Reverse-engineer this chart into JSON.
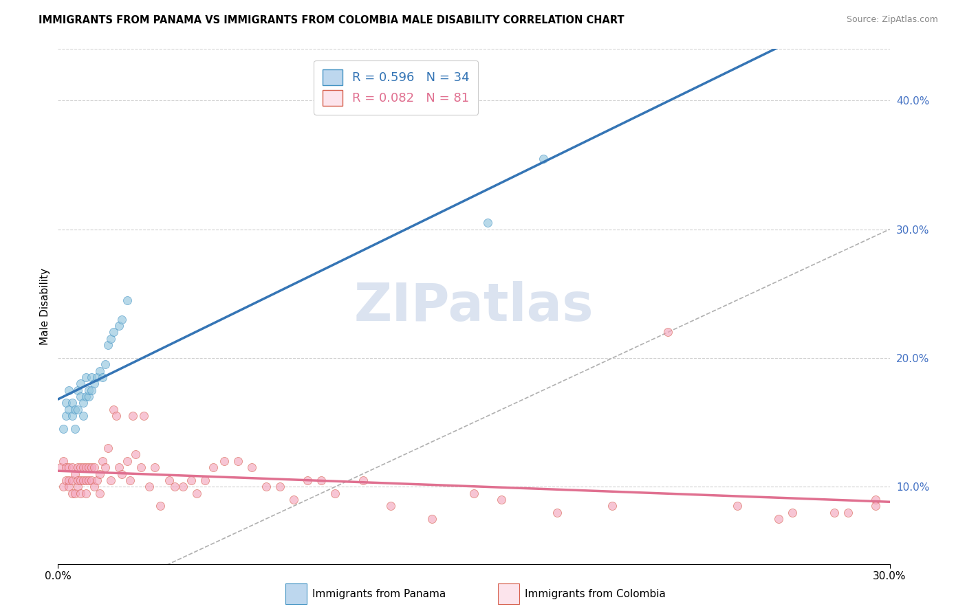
{
  "title": "IMMIGRANTS FROM PANAMA VS IMMIGRANTS FROM COLOMBIA MALE DISABILITY CORRELATION CHART",
  "source": "Source: ZipAtlas.com",
  "ylabel": "Male Disability",
  "xmin": 0.0,
  "xmax": 0.3,
  "ymin": 0.04,
  "ymax": 0.44,
  "ytick_vals": [
    0.1,
    0.2,
    0.3,
    0.4
  ],
  "ytick_labels": [
    "10.0%",
    "20.0%",
    "30.0%",
    "40.0%"
  ],
  "xtick_vals": [
    0.0,
    0.3
  ],
  "xtick_labels": [
    "0.0%",
    "30.0%"
  ],
  "R_panama": 0.596,
  "N_panama": 34,
  "R_colombia": 0.082,
  "N_colombia": 81,
  "color_panama_dot": "#92c5de",
  "color_colombia_dot": "#f4a6be",
  "color_panama_edge": "#4393c3",
  "color_colombia_edge": "#d6604d",
  "color_panama_line": "#3575b5",
  "color_colombia_line": "#e07090",
  "color_panama_legend_fill": "#bdd7ee",
  "color_colombia_legend_fill": "#fce4ec",
  "color_diagonal_dash": "#b0b0b0",
  "color_grid": "#d0d0d0",
  "color_ytick": "#4472c4",
  "watermark_color": "#cdd8ea",
  "panama_x": [
    0.002,
    0.003,
    0.003,
    0.004,
    0.004,
    0.005,
    0.005,
    0.006,
    0.006,
    0.007,
    0.007,
    0.008,
    0.008,
    0.009,
    0.009,
    0.01,
    0.01,
    0.011,
    0.011,
    0.012,
    0.012,
    0.013,
    0.014,
    0.015,
    0.016,
    0.017,
    0.018,
    0.019,
    0.02,
    0.022,
    0.023,
    0.025,
    0.155,
    0.175
  ],
  "panama_y": [
    0.145,
    0.155,
    0.165,
    0.16,
    0.175,
    0.155,
    0.165,
    0.145,
    0.16,
    0.16,
    0.175,
    0.17,
    0.18,
    0.155,
    0.165,
    0.17,
    0.185,
    0.17,
    0.175,
    0.175,
    0.185,
    0.18,
    0.185,
    0.19,
    0.185,
    0.195,
    0.21,
    0.215,
    0.22,
    0.225,
    0.23,
    0.245,
    0.305,
    0.355
  ],
  "colombia_x": [
    0.001,
    0.002,
    0.002,
    0.003,
    0.003,
    0.004,
    0.004,
    0.004,
    0.005,
    0.005,
    0.005,
    0.006,
    0.006,
    0.007,
    0.007,
    0.007,
    0.008,
    0.008,
    0.008,
    0.009,
    0.009,
    0.01,
    0.01,
    0.01,
    0.011,
    0.011,
    0.012,
    0.012,
    0.013,
    0.013,
    0.014,
    0.015,
    0.015,
    0.016,
    0.017,
    0.018,
    0.019,
    0.02,
    0.021,
    0.022,
    0.023,
    0.025,
    0.026,
    0.027,
    0.028,
    0.03,
    0.031,
    0.033,
    0.035,
    0.037,
    0.04,
    0.042,
    0.045,
    0.048,
    0.05,
    0.053,
    0.056,
    0.06,
    0.065,
    0.07,
    0.075,
    0.08,
    0.085,
    0.09,
    0.095,
    0.1,
    0.11,
    0.12,
    0.135,
    0.15,
    0.16,
    0.18,
    0.2,
    0.22,
    0.245,
    0.26,
    0.265,
    0.28,
    0.285,
    0.295,
    0.295
  ],
  "colombia_y": [
    0.115,
    0.1,
    0.12,
    0.105,
    0.115,
    0.1,
    0.105,
    0.115,
    0.095,
    0.105,
    0.115,
    0.095,
    0.11,
    0.1,
    0.105,
    0.115,
    0.095,
    0.105,
    0.115,
    0.105,
    0.115,
    0.095,
    0.105,
    0.115,
    0.105,
    0.115,
    0.105,
    0.115,
    0.1,
    0.115,
    0.105,
    0.095,
    0.11,
    0.12,
    0.115,
    0.13,
    0.105,
    0.16,
    0.155,
    0.115,
    0.11,
    0.12,
    0.105,
    0.155,
    0.125,
    0.115,
    0.155,
    0.1,
    0.115,
    0.085,
    0.105,
    0.1,
    0.1,
    0.105,
    0.095,
    0.105,
    0.115,
    0.12,
    0.12,
    0.115,
    0.1,
    0.1,
    0.09,
    0.105,
    0.105,
    0.095,
    0.105,
    0.085,
    0.075,
    0.095,
    0.09,
    0.08,
    0.085,
    0.22,
    0.085,
    0.075,
    0.08,
    0.08,
    0.08,
    0.09,
    0.085
  ]
}
